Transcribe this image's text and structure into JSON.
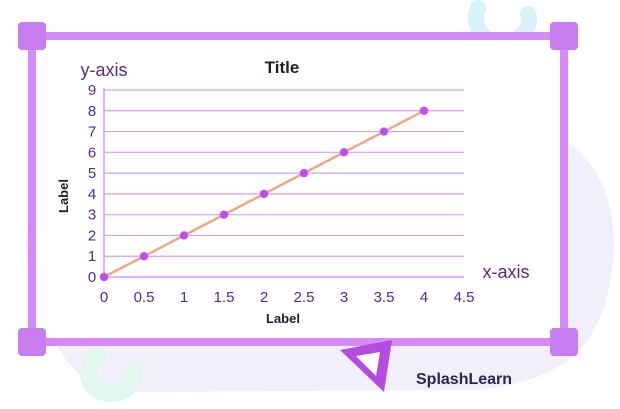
{
  "colors": {
    "frame": "#d58af5",
    "frame_dark": "#c77def",
    "grid": "#d99cf3",
    "line": "#f4a382",
    "point": "#c24ee8",
    "text": "#5a2a82",
    "blob": "#f3effa",
    "deco_blue": "#d7f2f8",
    "deco_green": "#e1f6ec",
    "ruler": "#b44cdf",
    "brand": "#2d2350"
  },
  "brand": {
    "name": "SplashLearn",
    "icon": "ruler-triangle-icon"
  },
  "chart_data": {
    "type": "line",
    "title": "Title",
    "xlabel": "Label",
    "ylabel": "Label",
    "x_axis_name": "x-axis",
    "y_axis_name": "y-axis",
    "xlim": [
      0,
      4.5
    ],
    "ylim": [
      0,
      9
    ],
    "xticks": [
      "0",
      "0.5",
      "1",
      "1.5",
      "2",
      "2.5",
      "3",
      "3.5",
      "4",
      "4.5"
    ],
    "yticks": [
      "0",
      "1",
      "2",
      "3",
      "4",
      "5",
      "6",
      "7",
      "8",
      "9"
    ],
    "grid": "horizontal",
    "series": [
      {
        "x": [
          0,
          0.5,
          1,
          1.5,
          2,
          2.5,
          3,
          3.5,
          4
        ],
        "y": [
          0,
          1,
          2,
          3,
          4,
          5,
          6,
          7,
          8
        ]
      }
    ]
  }
}
